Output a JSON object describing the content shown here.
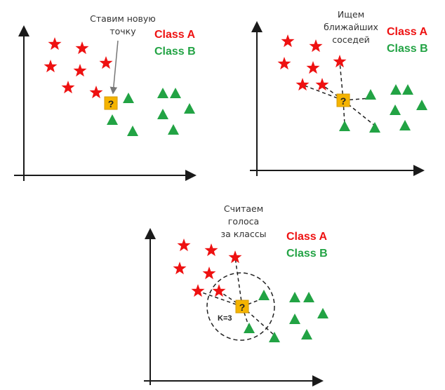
{
  "colors": {
    "class_a": "#ee1111",
    "class_b": "#22a344",
    "query": "#f5b400",
    "axis": "#1a1a1a"
  },
  "legend": {
    "class_a": "Class A",
    "class_b": "Class B"
  },
  "panels": [
    {
      "caption": [
        "Ставим новую",
        "точку"
      ]
    },
    {
      "caption": [
        "Ищем",
        "ближайших",
        "соседей"
      ]
    },
    {
      "caption": [
        "Считаем",
        "голоса",
        "за классы"
      ]
    }
  ],
  "query_mark": "?",
  "k_label": "K=3"
}
